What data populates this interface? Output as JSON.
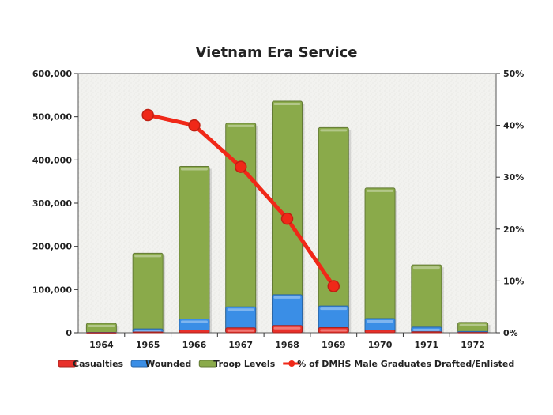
{
  "chart_data": {
    "type": "bar",
    "title": "Vietnam Era Service",
    "categories": [
      "1964",
      "1965",
      "1966",
      "1967",
      "1968",
      "1969",
      "1970",
      "1971",
      "1972"
    ],
    "series": [
      {
        "name": "Casualties",
        "type": "stacked-bar",
        "color": "#e8302a",
        "values": [
          200,
          1900,
          6300,
          11400,
          16900,
          11800,
          6100,
          2400,
          600
        ]
      },
      {
        "name": "Wounded",
        "type": "stacked-bar",
        "color": "#3a8ee6",
        "values": [
          1000,
          9000,
          32000,
          60000,
          88000,
          62000,
          33000,
          13000,
          3000
        ]
      },
      {
        "name": "Troop Levels",
        "type": "stacked-bar",
        "color": "#8aaa4a",
        "values": [
          22000,
          184000,
          385000,
          485000,
          536000,
          475000,
          335000,
          157000,
          24000
        ]
      },
      {
        "name": "% of DMHS Male Graduates Drafted/Enlisted",
        "type": "line",
        "axis": "right",
        "color": "#f02818",
        "values": [
          null,
          42,
          40,
          32,
          22,
          9,
          null,
          null,
          null
        ]
      }
    ],
    "y_left": {
      "min": 0,
      "max": 600000,
      "ticks": [
        "0",
        "100,000",
        "200,000",
        "300,000",
        "400,000",
        "500,000",
        "600,000"
      ]
    },
    "y_right": {
      "min": 0,
      "max": 50,
      "ticks": [
        "0%",
        "10%",
        "20%",
        "30%",
        "40%",
        "50%"
      ]
    },
    "grid": false,
    "legend": "bottom"
  }
}
